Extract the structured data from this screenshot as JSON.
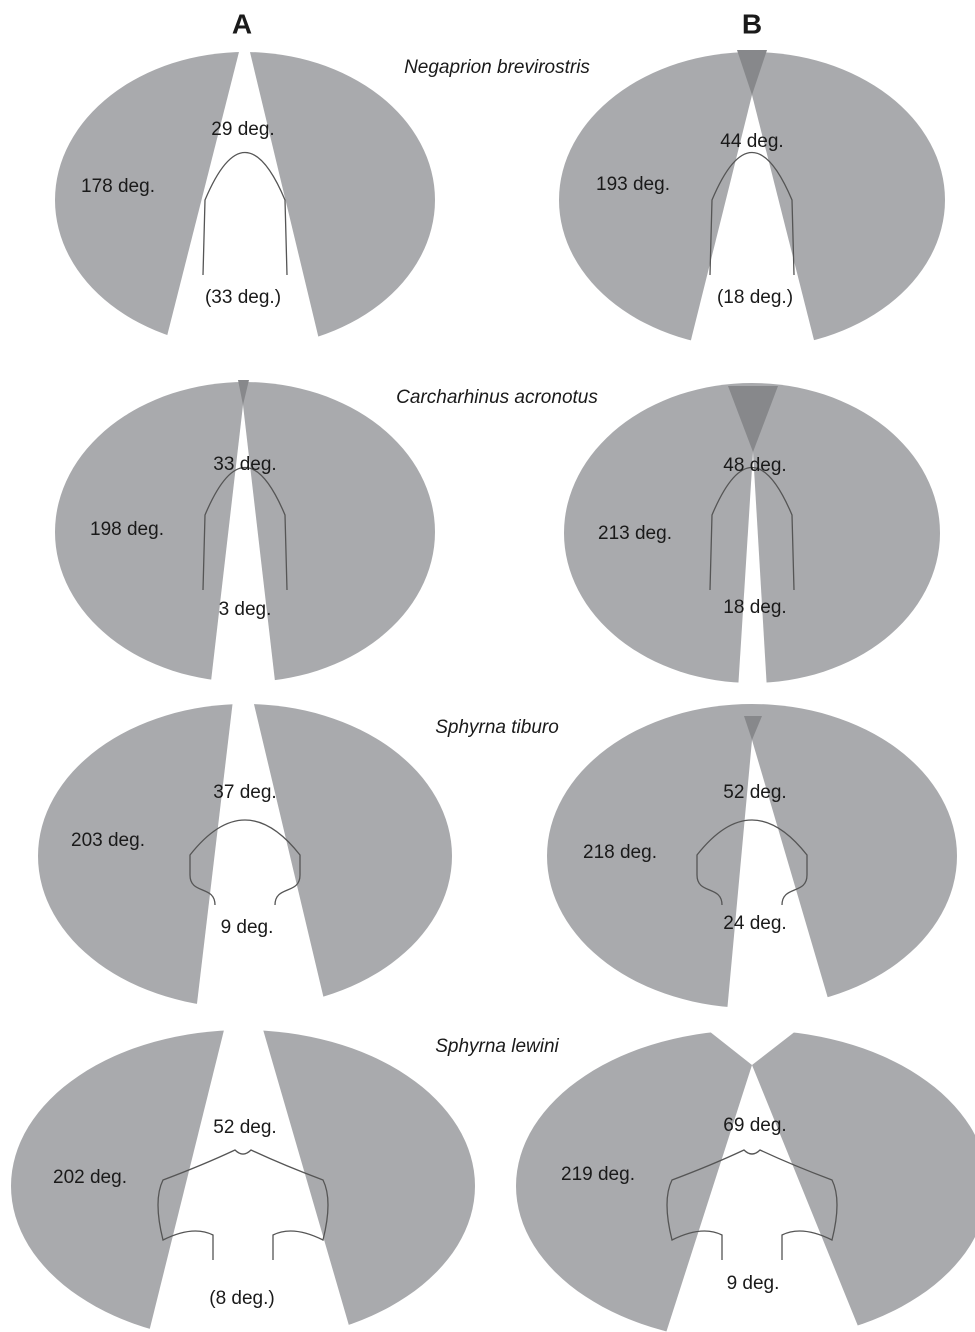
{
  "columns": [
    "A",
    "B"
  ],
  "rows": [
    {
      "species": "Negaprion brevirostris",
      "A": {
        "lateral": "178 deg.",
        "front": "29 deg.",
        "rear": "(33 deg.)"
      },
      "B": {
        "lateral": "193 deg.",
        "front": "44 deg.",
        "rear": "(18 deg.)"
      }
    },
    {
      "species": "Carcharhinus acronotus",
      "A": {
        "lateral": "198 deg.",
        "front": "33 deg.",
        "rear": "3 deg."
      },
      "B": {
        "lateral": "213 deg.",
        "front": "48 deg.",
        "rear": "18 deg."
      }
    },
    {
      "species": "Sphyrna tiburo",
      "A": {
        "lateral": "203 deg.",
        "front": "37 deg.",
        "rear": "9 deg."
      },
      "B": {
        "lateral": "218 deg.",
        "front": "52 deg.",
        "rear": "24 deg."
      }
    },
    {
      "species": "Sphyrna lewini",
      "A": {
        "lateral": "202 deg.",
        "front": "52 deg.",
        "rear": "(8 deg.)"
      },
      "B": {
        "lateral": "219 deg.",
        "front": "69 deg.",
        "rear": "9 deg."
      }
    }
  ]
}
